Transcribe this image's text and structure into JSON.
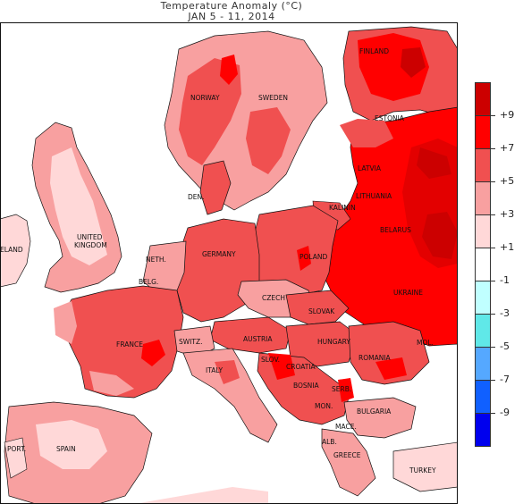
{
  "title": {
    "line1": "Temperature Anomaly (°C)",
    "line2": "JAN 5 - 11, 2014"
  },
  "legend": {
    "labels": [
      "+9",
      "+7",
      "+5",
      "+3",
      "+1",
      "-1",
      "-3",
      "-5",
      "-7",
      "-9"
    ],
    "colors": [
      "#cc0000",
      "#ff0000",
      "#f05050",
      "#f8a0a0",
      "#ffd8d8",
      "#ffffff",
      "#c0ffff",
      "#60e8e8",
      "#55a8ff",
      "#1060ff",
      "#0000ee"
    ]
  },
  "countries": {
    "finland": "FINLAND",
    "norway": "NORWAY",
    "sweden": "SWEDEN",
    "estonia": "ESTONIA",
    "latvia": "LATVIA",
    "lithuania": "LITHUANIA",
    "kalinin": "KALININ",
    "belarus": "BELARUS",
    "den": "DEN.",
    "uk": "UNITED\nKINGDOM",
    "ireland": "ELAND",
    "neth": "NETH.",
    "belg": "BELG.",
    "germany": "GERMANY",
    "poland": "POLAND",
    "czech": "CZECH",
    "slovak": "SLOVAK",
    "ukraine": "UKRAINE",
    "france": "FRANCE",
    "switz": "SWITZ.",
    "austria": "AUSTRIA",
    "hungary": "HUNGARY",
    "mol": "MOL.",
    "slov": "SLOV.",
    "croatia": "CROATIA",
    "romania": "ROMANIA",
    "italy": "ITALY",
    "bosnia": "BOSNIA",
    "serb": "SERB.",
    "mon": "MON.",
    "bulgaria": "BULGARIA",
    "mace": "MACE.",
    "alb": "ALB.",
    "greece": "GREECE",
    "turkey": "TURKEY",
    "port": "PORT.",
    "spain": "SPAIN"
  }
}
